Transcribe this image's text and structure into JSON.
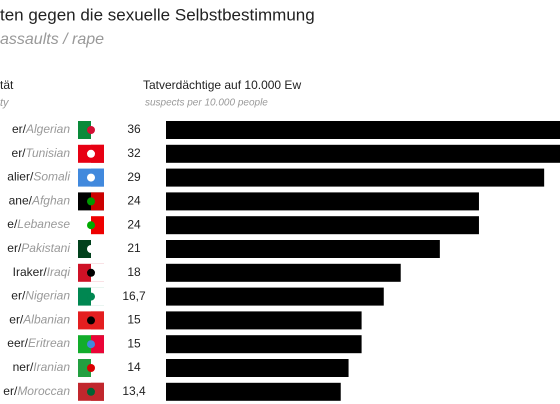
{
  "chart_data": {
    "type": "bar",
    "title": "ten gegen die sexuelle Selbstbestimmung",
    "subtitle": "assaults / rape",
    "category_header": "tät",
    "category_header_en": "ty",
    "value_header": "Tatverdächtige auf 10.000 Ew",
    "value_header_en": "suspects per 10.000 people",
    "labels_de": [
      "er/",
      "er/",
      "alier/",
      "ane/",
      "e/",
      "er/",
      "Iraker/",
      "er/",
      "er/",
      "eer/",
      "ner/",
      "er/"
    ],
    "categories": [
      "Algerian",
      "Tunisian",
      "Somali",
      "Afghan",
      "Lebanese",
      "Pakistani",
      "Iraqi",
      "Nigerian",
      "Albanian",
      "Eritrean",
      "Iranian",
      "Moroccan"
    ],
    "values": [
      36,
      32,
      29,
      24,
      24,
      21,
      18,
      16.7,
      15,
      15,
      14,
      13.4
    ],
    "value_labels": [
      "36",
      "32",
      "29",
      "24",
      "24",
      "21",
      "18",
      "16,7",
      "15",
      "15",
      "14",
      "13,4"
    ],
    "color": "#000000"
  }
}
